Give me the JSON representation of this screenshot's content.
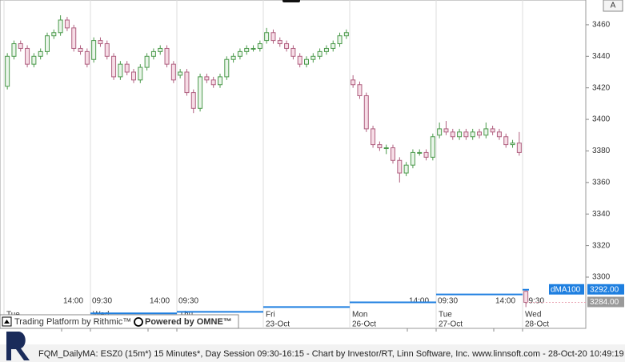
{
  "chart_data": {
    "type": "candlestick",
    "ylim": [
      3267.5,
      3475.7
    ],
    "yticks": [
      3300,
      3320,
      3340,
      3360,
      3380,
      3400,
      3420,
      3440,
      3460
    ],
    "bars_per_day": 27,
    "candles_per_day": 13,
    "up_color": "#4c9a4c",
    "down_color": "#b06080",
    "open": [
      3421,
      3440,
      3448,
      3445,
      3435,
      3440,
      3443,
      3453,
      3455,
      3463,
      3458,
      3445,
      3443,
      3438,
      3450,
      3448,
      3440,
      3427,
      3435,
      3430,
      3425,
      3433,
      3440,
      3443,
      3445,
      3435,
      3428,
      3430,
      3417,
      3407,
      3427,
      3425,
      3422,
      3427,
      3438,
      3440,
      3443,
      3445,
      3445,
      3450,
      3455,
      3450,
      3448,
      3445,
      3440,
      3435,
      3438,
      3440,
      3443,
      3445,
      3448,
      3453,
      3425,
      3422,
      3415,
      3394,
      3384,
      3382,
      3382,
      3374,
      3366,
      3371,
      3379,
      3379,
      3376,
      3390,
      3394,
      3392,
      3389,
      3392,
      3389,
      3392,
      3390,
      3394,
      3392,
      3389,
      3384,
      3385,
      3291
    ],
    "high": [
      3442,
      3450,
      3450,
      3447,
      3442,
      3445,
      3455,
      3457,
      3466,
      3465,
      3460,
      3447,
      3445,
      3452,
      3452,
      3450,
      3442,
      3437,
      3437,
      3432,
      3435,
      3442,
      3445,
      3447,
      3447,
      3437,
      3432,
      3432,
      3419,
      3429,
      3429,
      3427,
      3429,
      3440,
      3442,
      3445,
      3447,
      3447,
      3450,
      3458,
      3457,
      3452,
      3450,
      3447,
      3442,
      3440,
      3442,
      3445,
      3447,
      3450,
      3455,
      3457,
      3428,
      3424,
      3417,
      3396,
      3386,
      3384,
      3384,
      3376,
      3373,
      3381,
      3381,
      3381,
      3391,
      3398,
      3399,
      3394,
      3394,
      3394,
      3394,
      3394,
      3398,
      3396,
      3394,
      3391,
      3387,
      3392,
      3292
    ],
    "low": [
      3419,
      3438,
      3443,
      3433,
      3433,
      3438,
      3441,
      3451,
      3453,
      3456,
      3443,
      3441,
      3433,
      3436,
      3446,
      3438,
      3425,
      3425,
      3428,
      3423,
      3423,
      3431,
      3438,
      3441,
      3433,
      3423,
      3426,
      3415,
      3404,
      3405,
      3423,
      3420,
      3420,
      3425,
      3436,
      3438,
      3441,
      3443,
      3443,
      3448,
      3448,
      3446,
      3443,
      3438,
      3433,
      3433,
      3436,
      3438,
      3441,
      3443,
      3446,
      3451,
      3420,
      3413,
      3392,
      3382,
      3380,
      3378,
      3372,
      3360,
      3364,
      3369,
      3377,
      3374,
      3374,
      3388,
      3390,
      3387,
      3387,
      3387,
      3387,
      3388,
      3388,
      3390,
      3387,
      3382,
      3382,
      3377,
      3281
    ],
    "close": [
      3440,
      3448,
      3445,
      3435,
      3440,
      3443,
      3453,
      3455,
      3463,
      3458,
      3445,
      3443,
      3435,
      3450,
      3448,
      3440,
      3427,
      3435,
      3430,
      3425,
      3433,
      3440,
      3443,
      3445,
      3435,
      3425,
      3430,
      3417,
      3407,
      3427,
      3425,
      3422,
      3427,
      3438,
      3440,
      3443,
      3445,
      3445,
      3448,
      3455,
      3450,
      3448,
      3445,
      3440,
      3435,
      3438,
      3440,
      3443,
      3445,
      3448,
      3453,
      3455,
      3422,
      3415,
      3394,
      3384,
      3382,
      3382,
      3374,
      3366,
      3371,
      3379,
      3379,
      3376,
      3389,
      3394,
      3392,
      3389,
      3392,
      3389,
      3392,
      3390,
      3394,
      3392,
      3389,
      3384,
      3385,
      3379,
      3284
    ],
    "price_label": "3284.00",
    "dma": {
      "name": "dMA100",
      "color": "#1e7fe0",
      "values": [
        3272,
        3277,
        3278,
        3281,
        3284,
        3289,
        3292
      ],
      "last_label": "3292.00"
    },
    "days": [
      {
        "weekday": "Tue",
        "bar": 0
      },
      {
        "weekday": "Wed",
        "bar": 27
      },
      {
        "weekday": "Thu",
        "bar": 54
      },
      {
        "weekday": "Fri",
        "date": "23-Oct",
        "bar": 81
      },
      {
        "weekday": "Mon",
        "date": "26-Oct",
        "bar": 108
      },
      {
        "weekday": "Tue",
        "date": "27-Oct",
        "bar": 135
      },
      {
        "weekday": "Wed",
        "date": "28-Oct",
        "bar": 162
      }
    ],
    "time_ticks": [
      {
        "label": "14:00",
        "bar": 18
      },
      {
        "label": "09:30",
        "bar": 27
      },
      {
        "label": "14:00",
        "bar": 45
      },
      {
        "label": "09:30",
        "bar": 54
      },
      {
        "label": "14:00",
        "bar": 126
      },
      {
        "label": "09:30",
        "bar": 135
      },
      {
        "label": "14:00",
        "bar": 153
      },
      {
        "label": "09:30",
        "bar": 162
      }
    ],
    "corner_button": "A",
    "overlay": {
      "rithmic": "Trading Platform by Rithmic™",
      "omne": "Powered by OMNE™"
    },
    "status": "FQM_DailyMA: ESZ0 (15m*) 15 Minutes*, Day Session 09:30-16:15 - Chart by Investor/RT, Linn Software, Inc. www.linnsoft.com - 28-Oct-20 10:49:19"
  }
}
